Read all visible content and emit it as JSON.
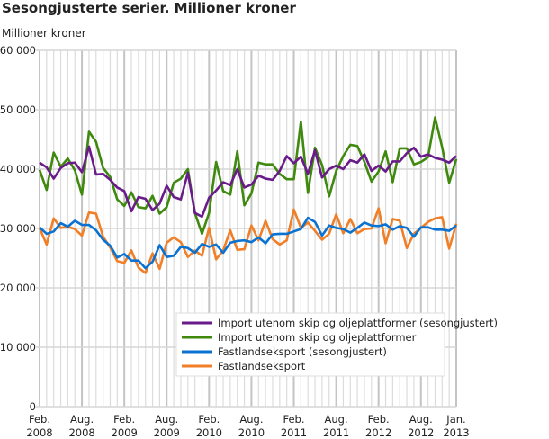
{
  "chart_data": {
    "type": "line",
    "title": "Sesongjusterte serier. Millioner kroner",
    "ylabel": "Millioner kroner",
    "ylim": [
      0,
      60000
    ],
    "yticks": [
      0,
      10000,
      20000,
      30000,
      40000,
      50000,
      60000
    ],
    "ytick_labels": [
      "0",
      "10 000",
      "20 000",
      "30 000",
      "40 000",
      "50 000",
      "60 000"
    ],
    "x_start": "2008-02",
    "x_end": "2013-01",
    "x_step": "month",
    "xtick_labels": [
      [
        "Feb.",
        "2008"
      ],
      [
        "Aug.",
        "2008"
      ],
      [
        "Feb.",
        "2009"
      ],
      [
        "Aug.",
        "2009"
      ],
      [
        "Feb.",
        "2010"
      ],
      [
        "Aug.",
        "2010"
      ],
      [
        "Feb.",
        "2011"
      ],
      [
        "Aug.",
        "2011"
      ],
      [
        "Feb.",
        "2012"
      ],
      [
        "Aug.",
        "2012"
      ],
      [
        "Jan.",
        "2013"
      ]
    ],
    "xtick_index": [
      0,
      6,
      12,
      18,
      24,
      30,
      36,
      42,
      48,
      54,
      59
    ],
    "grid": true,
    "legend": "bottom-right",
    "series": [
      {
        "name": "Import utenom skip og oljeplattformer (sesongjustert)",
        "color": "#6a1b8a",
        "values": [
          41100,
          40300,
          38400,
          40200,
          41000,
          41100,
          39500,
          43800,
          39100,
          39200,
          38200,
          36900,
          36300,
          32900,
          35300,
          35000,
          33100,
          34200,
          37200,
          35300,
          34900,
          39400,
          32600,
          32000,
          35200,
          36400,
          37800,
          37300,
          40000,
          36900,
          37400,
          38900,
          38400,
          38200,
          39700,
          42200,
          41000,
          42100,
          39200,
          43200,
          38600,
          40000,
          40600,
          40000,
          41500,
          41100,
          42500,
          39700,
          40600,
          39600,
          41300,
          41300,
          42700,
          43600,
          42100,
          42500,
          41900,
          41600,
          41100,
          42200
        ]
      },
      {
        "name": "Import utenom skip og oljeplattformer",
        "color": "#3f8a0e",
        "values": [
          39900,
          36500,
          42800,
          40400,
          41800,
          39800,
          35700,
          46300,
          44600,
          40200,
          38700,
          34900,
          33800,
          36100,
          33600,
          33400,
          35500,
          32500,
          33600,
          37700,
          38400,
          40000,
          32600,
          29100,
          32600,
          41200,
          36300,
          35700,
          43000,
          33900,
          35900,
          41100,
          40800,
          40800,
          39200,
          38300,
          38300,
          48000,
          36000,
          43600,
          40700,
          35400,
          39700,
          42200,
          44100,
          43900,
          41200,
          37900,
          39600,
          43000,
          37800,
          43500,
          43500,
          40800,
          41200,
          42000,
          48700,
          43700,
          37700,
          41700
        ]
      },
      {
        "name": "Fastlandseksport (sesongjustert)",
        "color": "#0a72d1",
        "values": [
          30200,
          29100,
          29500,
          30900,
          30300,
          31300,
          30600,
          30600,
          29700,
          28100,
          27100,
          25100,
          25700,
          24600,
          24600,
          23300,
          24400,
          27200,
          25200,
          25400,
          26900,
          26700,
          25900,
          27400,
          26900,
          27300,
          25900,
          27600,
          27900,
          28000,
          27700,
          28500,
          27500,
          29000,
          29100,
          29100,
          29500,
          29900,
          31800,
          31100,
          28800,
          30500,
          30100,
          29900,
          29300,
          30100,
          31000,
          30500,
          30400,
          30700,
          29800,
          30400,
          30100,
          28600,
          30200,
          30200,
          29800,
          29800,
          29600,
          30500
        ]
      },
      {
        "name": "Fastlandseksport",
        "color": "#f07f28",
        "values": [
          30100,
          27300,
          31700,
          30100,
          30300,
          29900,
          28800,
          32700,
          32500,
          28600,
          26800,
          24500,
          24200,
          26300,
          23400,
          22500,
          25800,
          23200,
          27600,
          28500,
          27700,
          25200,
          26300,
          25400,
          30100,
          24800,
          26300,
          29700,
          26400,
          26500,
          30500,
          28000,
          31300,
          28200,
          27300,
          28000,
          33200,
          30100,
          31000,
          29600,
          28100,
          29100,
          32400,
          29200,
          31600,
          29200,
          29900,
          30000,
          33400,
          27500,
          31600,
          31300,
          26700,
          29100,
          30100,
          31100,
          31700,
          31900,
          26600,
          30800
        ]
      }
    ]
  }
}
